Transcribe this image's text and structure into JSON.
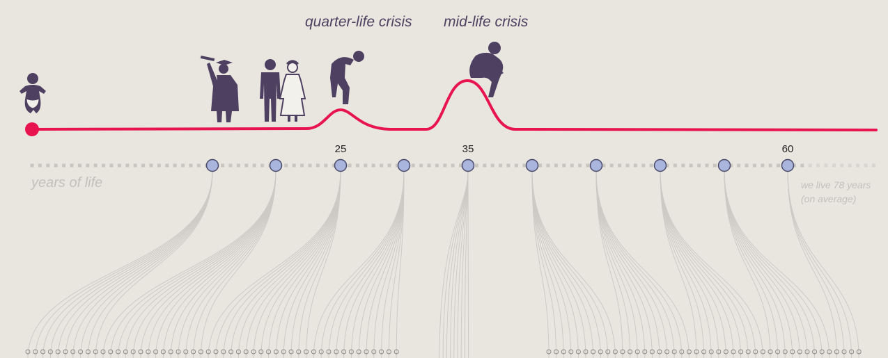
{
  "labels": {
    "quarter_life": "quarter-life crisis",
    "mid_life": "mid-life crisis",
    "years_of_life": "years of life",
    "average_line1": "we live 78 years",
    "average_line2": "(on average)"
  },
  "year_marks": [
    {
      "year": "25"
    },
    {
      "year": "35"
    },
    {
      "year": "60"
    }
  ],
  "milestones": [
    {
      "icon": "baby-icon"
    },
    {
      "icon": "graduate-icon"
    },
    {
      "icon": "wedding-couple-icon"
    },
    {
      "icon": "slumped-person-icon"
    },
    {
      "icon": "thinker-icon"
    }
  ],
  "colors": {
    "background": "#e9e6e0",
    "life_line": "#e8144f",
    "icons": "#4e4060",
    "decade_marker_fill": "#a9b5dc",
    "decade_marker_stroke": "#4a4a6a",
    "axis_dots": "#c9c6c1",
    "threads": "#cdcac5"
  }
}
